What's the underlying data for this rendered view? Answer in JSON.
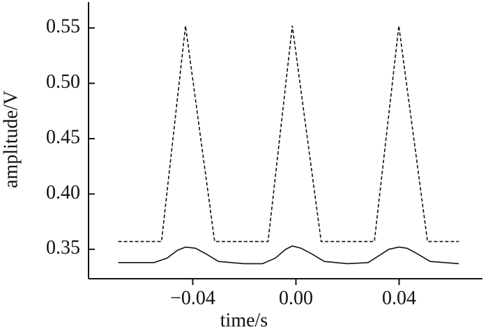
{
  "chart_data": {
    "type": "line",
    "x_label": "time/s",
    "y_label": "amplitude/V",
    "xlim": [
      -0.0804,
      0.0723
    ],
    "ylim": [
      0.3234,
      0.5734
    ],
    "xticks": [
      {
        "value": -0.04,
        "label": "−0.04"
      },
      {
        "value": 0,
        "label": "0.00"
      },
      0.04
    ],
    "yticks": [
      0.35,
      {
        "value": 0.4,
        "label": "0.40"
      },
      0.45,
      {
        "value": 0.5,
        "label": "0.50"
      },
      0.55
    ],
    "series": [
      {
        "color": "#111111",
        "dashed": true,
        "x": [
          -0.0689,
          -0.0521,
          -0.0428,
          -0.0315,
          -0.0108,
          -0.0014,
          0.0098,
          0.0304,
          0.0399,
          0.051,
          0.0632
        ],
        "values": [
          0.357,
          0.357,
          0.552,
          0.357,
          0.357,
          0.552,
          0.357,
          0.357,
          0.552,
          0.357,
          0.357
        ]
      },
      {
        "color": "#111111",
        "dashed": false,
        "x": [
          -0.0689,
          -0.055,
          -0.05,
          -0.046,
          -0.0428,
          -0.039,
          -0.035,
          -0.03,
          -0.02,
          -0.013,
          -0.008,
          -0.004,
          -0.0014,
          0.002,
          0.006,
          0.011,
          0.02,
          0.028,
          0.032,
          0.036,
          0.0399,
          0.043,
          0.047,
          0.052,
          0.0632
        ],
        "values": [
          0.338,
          0.338,
          0.342,
          0.349,
          0.352,
          0.351,
          0.346,
          0.339,
          0.337,
          0.337,
          0.342,
          0.35,
          0.353,
          0.351,
          0.346,
          0.339,
          0.337,
          0.338,
          0.344,
          0.35,
          0.352,
          0.351,
          0.346,
          0.339,
          0.337
        ]
      }
    ]
  }
}
